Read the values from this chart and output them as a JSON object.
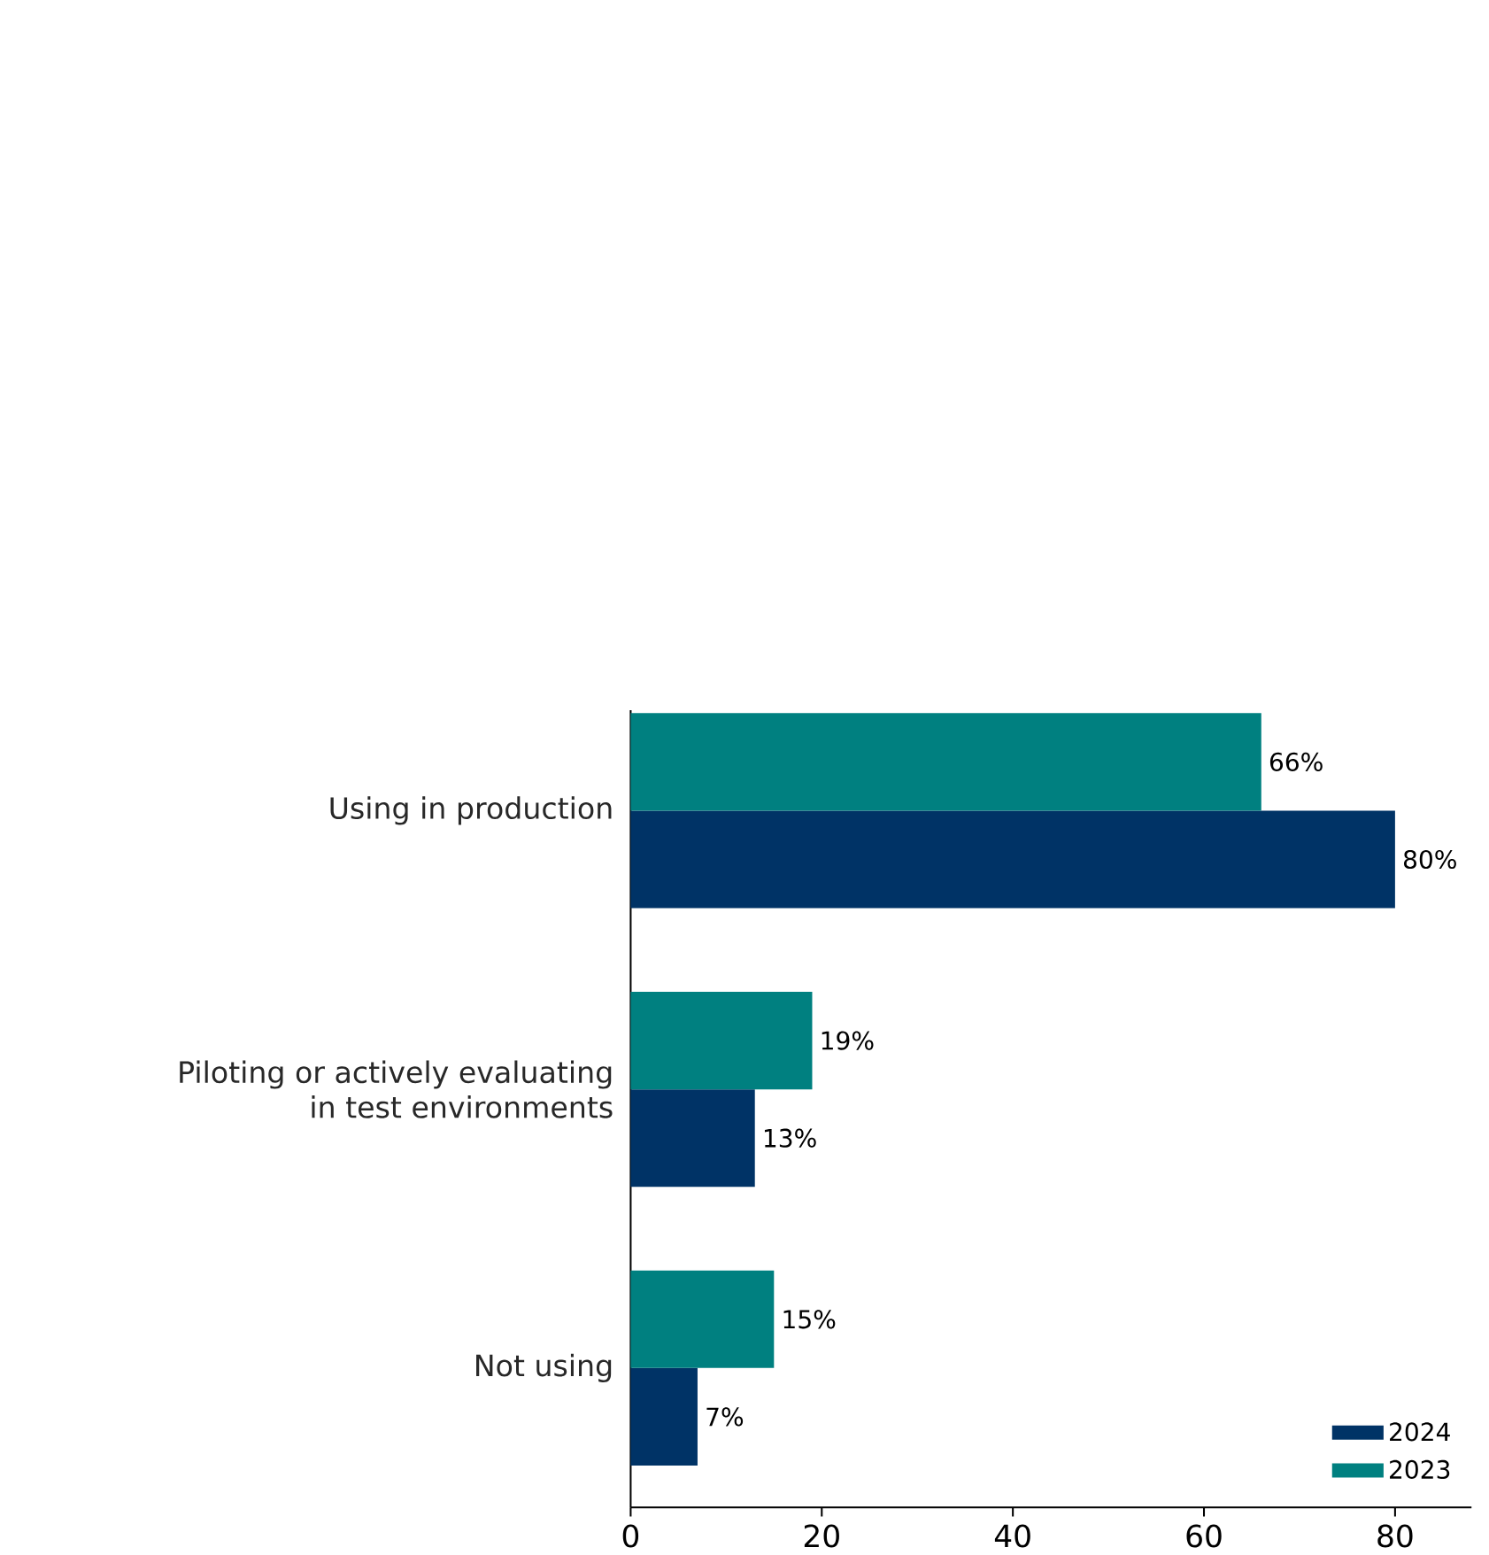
{
  "chart_data": {
    "type": "bar",
    "orientation": "horizontal",
    "categories": [
      "Using in production",
      "Piloting or actively evaluating\nin test environments",
      "Not using"
    ],
    "series": [
      {
        "name": "2024",
        "color": "#003366",
        "values": [
          80,
          13,
          7
        ],
        "value_labels": [
          "80%",
          "13%",
          "7%"
        ]
      },
      {
        "name": "2023",
        "color": "#008080",
        "values": [
          66,
          19,
          15
        ],
        "value_labels": [
          "66%",
          "19%",
          "15%"
        ]
      }
    ],
    "xlim": [
      0,
      88
    ],
    "xticks": [
      0,
      20,
      40,
      60,
      80
    ],
    "legend": "bottom right",
    "grid": false
  }
}
